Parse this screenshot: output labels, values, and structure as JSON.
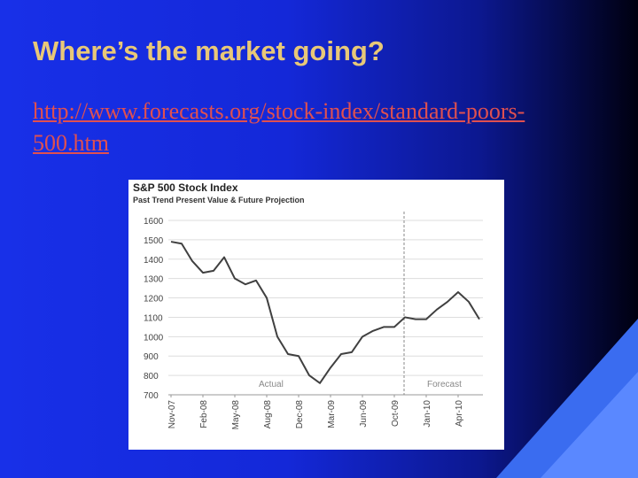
{
  "slide_title": "Where’s the market going?",
  "link": "http://www.forecasts.org/stock-index/standard-poors-500.htm",
  "chart_data": {
    "type": "line",
    "title": "S&P 500 Stock Index",
    "subtitle": "Past Trend Present Value & Future Projection",
    "annotations": [
      "Actual",
      "Forecast"
    ],
    "categories": [
      "Nov-07",
      null,
      null,
      "Feb-08",
      null,
      null,
      "May-08",
      null,
      null,
      "Aug-08",
      null,
      null,
      "Dec-08",
      null,
      null,
      "Mar-09",
      null,
      null,
      "Jun-09",
      null,
      null,
      "Oct-09",
      null,
      null,
      "Jan-10",
      null,
      null,
      "Apr-10",
      null,
      null
    ],
    "series": [
      {
        "name": "S&P 500",
        "color": "#404040",
        "values": [
          1490,
          1480,
          1390,
          1330,
          1340,
          1410,
          1300,
          1270,
          1290,
          1200,
          1000,
          910,
          900,
          800,
          760,
          840,
          910,
          920,
          1000,
          1030,
          1050,
          1050,
          1100,
          1090,
          1090,
          1140,
          1180,
          1230,
          1180,
          1090
        ]
      }
    ],
    "ylim": [
      700,
      1600
    ],
    "yticks": [
      700,
      800,
      900,
      1000,
      1100,
      1200,
      1300,
      1400,
      1500,
      1600
    ],
    "grid": true
  }
}
